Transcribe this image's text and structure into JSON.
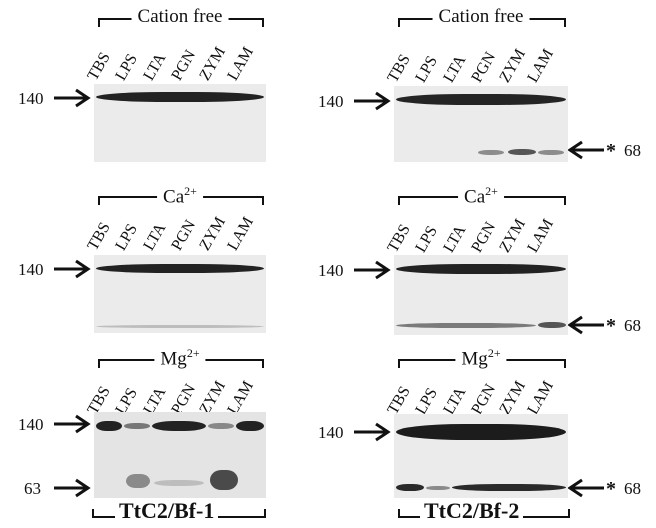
{
  "lanes": [
    "TBS",
    "LPS",
    "LTA",
    "PGN",
    "ZYM",
    "LAM"
  ],
  "conditions": {
    "cation_free": "Cation free",
    "ca": "Ca",
    "ca_sup": "2+",
    "mg": "Mg",
    "mg_sup": "2+"
  },
  "markers": {
    "m140": "140",
    "m68": "68",
    "m63": "63",
    "star": "*"
  },
  "titles": {
    "left": "TtC2/Bf-1",
    "right": "TtC2/Bf-2"
  },
  "colors": {
    "blot_bg": "#ebebeb",
    "band_dark": "#1c1c1c",
    "band_light": "#9a9a9a"
  }
}
